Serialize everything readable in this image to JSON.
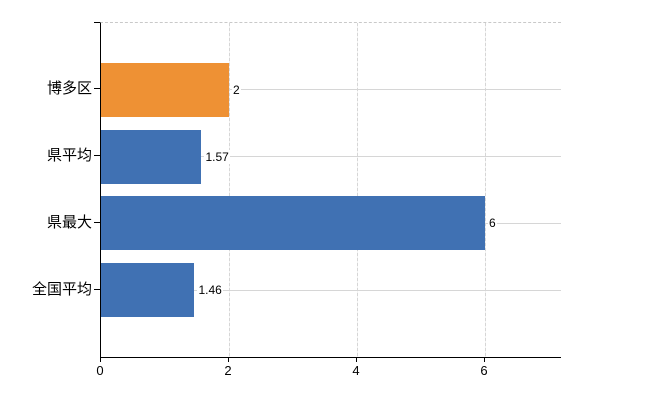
{
  "chart_data": {
    "type": "bar",
    "orientation": "horizontal",
    "title": "",
    "xlabel": "",
    "ylabel": "",
    "categories": [
      "博多区",
      "県平均",
      "県最大",
      "全国平均"
    ],
    "values": [
      2,
      1.57,
      6,
      1.46
    ],
    "value_labels": [
      "2",
      "1.57",
      "6",
      "1.46"
    ],
    "bar_colors": [
      "#EE9134",
      "#4071B3",
      "#4071B3",
      "#4071B3"
    ],
    "xlim": [
      0,
      7.1875
    ],
    "x_ticks": [
      0,
      2,
      4,
      6
    ],
    "x_tick_labels": [
      "0",
      "2",
      "4",
      "6"
    ],
    "grid": true,
    "legend": null,
    "colors": {
      "accent_orange": "#EE9134",
      "series_blue": "#4071B3",
      "gridline": "#D6D6D6",
      "axis": "#000000",
      "text": "#000000",
      "background": "#FFFFFF"
    }
  }
}
